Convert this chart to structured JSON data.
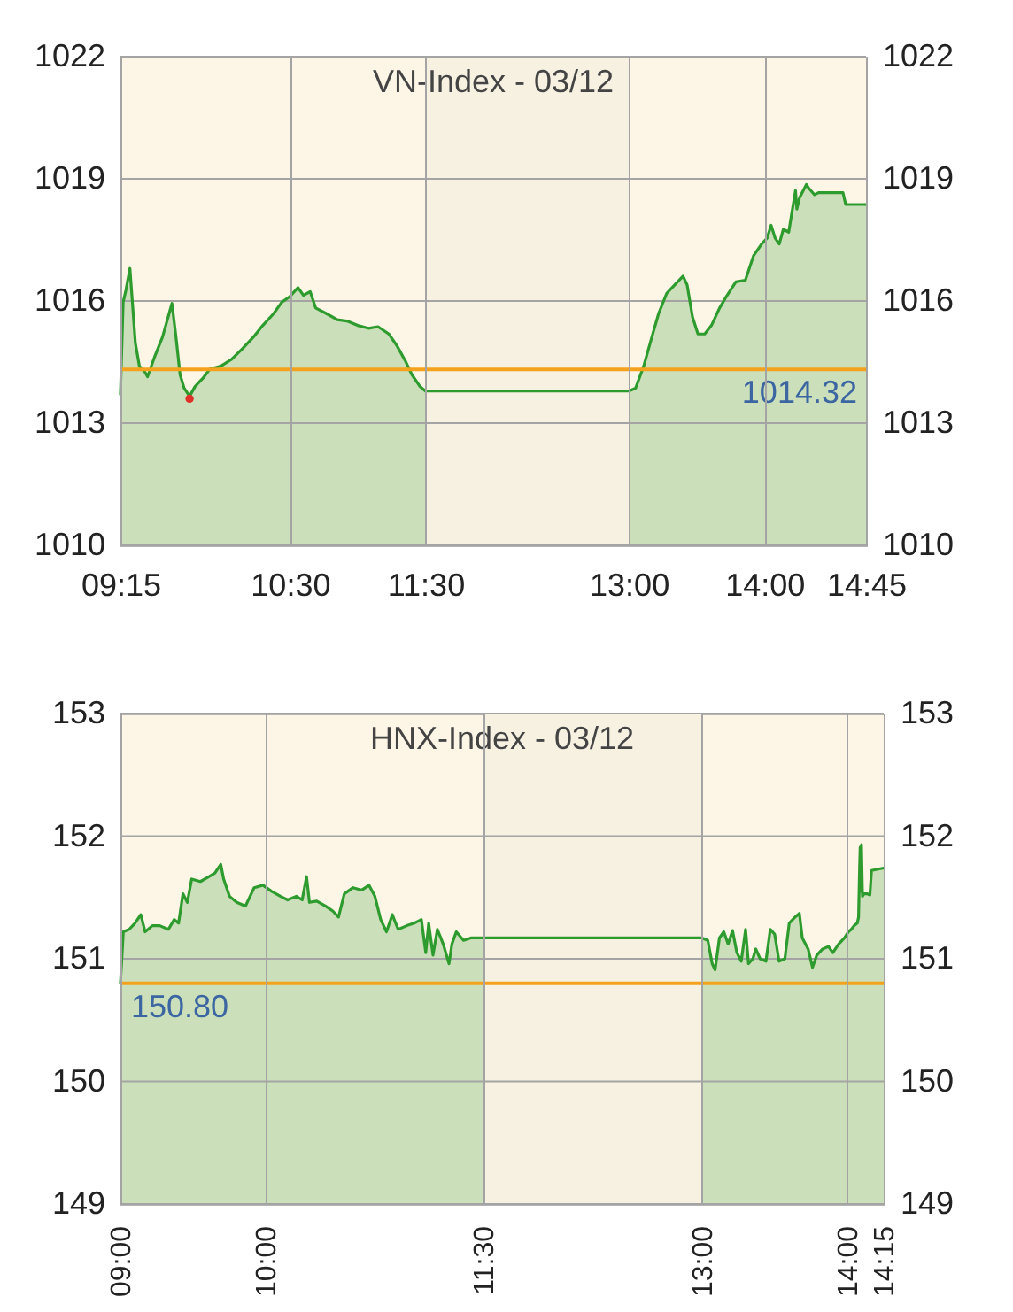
{
  "chart_data": [
    {
      "type": "area",
      "title": "VN-Index - 03/12",
      "x": [
        9.25,
        9.27,
        9.29,
        9.32,
        9.36,
        9.39,
        9.43,
        9.45,
        9.5,
        9.56,
        9.63,
        9.66,
        9.69,
        9.72,
        9.76,
        9.8,
        9.86,
        9.91,
        9.99,
        10.07,
        10.15,
        10.23,
        10.3,
        10.38,
        10.44,
        10.5,
        10.56,
        10.6,
        10.65,
        10.69,
        10.77,
        10.85,
        10.92,
        11.0,
        11.08,
        11.15,
        11.23,
        11.29,
        11.35,
        11.4,
        11.46,
        11.5,
        13.0,
        13.05,
        13.11,
        13.17,
        13.22,
        13.28,
        13.34,
        13.4,
        13.43,
        13.47,
        13.51,
        13.56,
        13.61,
        13.67,
        13.72,
        13.79,
        13.86,
        13.92,
        13.98,
        14.02,
        14.05,
        14.08,
        14.11,
        14.14,
        14.18,
        14.2,
        14.23,
        14.24,
        14.26,
        14.31,
        14.33,
        14.37,
        14.4,
        14.58,
        14.6,
        14.75
      ],
      "series": [
        {
          "color": "#2e9b2e",
          "values": [
            1013.71,
            1015.97,
            1016.26,
            1016.8,
            1014.97,
            1014.4,
            1014.26,
            1014.14,
            1014.61,
            1015.11,
            1015.94,
            1015.11,
            1014.19,
            1013.86,
            1013.66,
            1013.9,
            1014.11,
            1014.33,
            1014.4,
            1014.57,
            1014.83,
            1015.11,
            1015.4,
            1015.69,
            1015.97,
            1016.11,
            1016.33,
            1016.14,
            1016.23,
            1015.83,
            1015.69,
            1015.54,
            1015.51,
            1015.4,
            1015.33,
            1015.37,
            1015.19,
            1014.9,
            1014.54,
            1014.19,
            1013.9,
            1013.79,
            1013.79,
            1013.86,
            1014.4,
            1015.11,
            1015.69,
            1016.19,
            1016.4,
            1016.61,
            1016.4,
            1015.61,
            1015.19,
            1015.19,
            1015.4,
            1015.83,
            1016.11,
            1016.47,
            1016.51,
            1017.11,
            1017.4,
            1017.54,
            1017.86,
            1017.54,
            1017.4,
            1017.76,
            1017.69,
            1018.11,
            1018.71,
            1018.26,
            1018.54,
            1018.86,
            1018.76,
            1018.61,
            1018.66,
            1018.66,
            1018.37,
            1018.37
          ]
        },
        {
          "type": "scatter",
          "color": "#e0302a",
          "marker": "circle",
          "x": [
            9.76
          ],
          "values": [
            1013.6
          ]
        }
      ],
      "xlim": [
        9.25,
        14.75
      ],
      "xticks": [
        {
          "value": 9.25,
          "label": "09:15"
        },
        {
          "value": 10.5,
          "label": "10:30"
        },
        {
          "value": 11.5,
          "label": "11:30"
        },
        {
          "value": 13,
          "label": "13:00"
        },
        {
          "value": 14,
          "label": "14:00"
        },
        {
          "value": 14.75,
          "label": "14:45"
        }
      ],
      "ylim": [
        1010,
        1022
      ],
      "yticks": [
        1010,
        1013,
        1016,
        1019,
        1022
      ],
      "y2lim": [
        1010,
        1022
      ],
      "y2ticks": [
        1010,
        1013,
        1016,
        1019,
        1022
      ],
      "bands": [
        {
          "axis": "x",
          "from": 11.5,
          "to": 13,
          "color": "#f7f1e2"
        }
      ],
      "ref_lines": [
        {
          "axis": "y",
          "value": 1014.32,
          "label": "1014.32",
          "color": "#f4a21e"
        }
      ],
      "grid": true
    },
    {
      "type": "area",
      "title": "HNX-Index - 03/12",
      "x": [
        9.0,
        9.02,
        9.06,
        9.1,
        9.14,
        9.17,
        9.22,
        9.27,
        9.33,
        9.37,
        9.4,
        9.43,
        9.46,
        9.49,
        9.55,
        9.61,
        9.65,
        9.69,
        9.71,
        9.75,
        9.8,
        9.86,
        9.92,
        9.98,
        10.04,
        10.1,
        10.15,
        10.21,
        10.25,
        10.28,
        10.3,
        10.35,
        10.41,
        10.46,
        10.5,
        10.54,
        10.6,
        10.66,
        10.71,
        10.75,
        10.79,
        10.83,
        10.87,
        10.91,
        10.97,
        11.02,
        11.07,
        11.1,
        11.12,
        11.15,
        11.18,
        11.22,
        11.26,
        11.28,
        11.31,
        11.36,
        11.41,
        11.5,
        13.0,
        13.04,
        13.07,
        13.09,
        13.12,
        13.15,
        13.18,
        13.21,
        13.24,
        13.27,
        13.3,
        13.32,
        13.35,
        13.37,
        13.4,
        13.44,
        13.47,
        13.5,
        13.53,
        13.57,
        13.6,
        13.64,
        13.67,
        13.69,
        13.73,
        13.76,
        13.79,
        13.83,
        13.87,
        13.9,
        13.94,
        13.98,
        14.007,
        14.027,
        14.047,
        14.068,
        14.077,
        14.084,
        14.088,
        14.093,
        14.097,
        14.104,
        14.115,
        14.135,
        14.155,
        14.166,
        14.25
      ],
      "series": [
        {
          "color": "#2e9b2e",
          "values": [
            150.8,
            151.22,
            151.24,
            151.29,
            151.36,
            151.22,
            151.27,
            151.27,
            151.24,
            151.32,
            151.29,
            151.53,
            151.46,
            151.65,
            151.63,
            151.67,
            151.7,
            151.77,
            151.65,
            151.51,
            151.46,
            151.43,
            151.58,
            151.6,
            151.55,
            151.51,
            151.48,
            151.51,
            151.48,
            151.67,
            151.46,
            151.47,
            151.43,
            151.39,
            151.34,
            151.53,
            151.58,
            151.56,
            151.6,
            151.51,
            151.32,
            151.22,
            151.36,
            151.24,
            151.27,
            151.29,
            151.32,
            151.05,
            151.29,
            151.03,
            151.24,
            151.12,
            150.96,
            151.12,
            151.22,
            151.15,
            151.17,
            151.17,
            151.17,
            151.15,
            150.96,
            150.91,
            151.17,
            151.22,
            151.12,
            151.23,
            151.05,
            150.98,
            151.24,
            150.96,
            151.0,
            151.08,
            151.0,
            150.98,
            151.24,
            151.2,
            150.98,
            151.0,
            151.29,
            151.34,
            151.37,
            151.17,
            151.08,
            150.93,
            151.03,
            151.08,
            151.1,
            151.05,
            151.12,
            151.17,
            151.22,
            151.24,
            151.27,
            151.29,
            151.34,
            151.74,
            151.91,
            151.55,
            151.93,
            151.51,
            151.53,
            151.53,
            151.52,
            151.72,
            151.74
          ]
        }
      ],
      "xlim": [
        9.0,
        14.25
      ],
      "xticks": [
        {
          "value": 9.0,
          "label": "09:00"
        },
        {
          "value": 10,
          "label": "10:00"
        },
        {
          "value": 11.5,
          "label": "11:30"
        },
        {
          "value": 13,
          "label": "13:00"
        },
        {
          "value": 14,
          "label": "14:00"
        },
        {
          "value": 14.25,
          "label": "14:15"
        }
      ],
      "ylim": [
        149,
        153
      ],
      "yticks": [
        149,
        150,
        151,
        152,
        153
      ],
      "y2lim": [
        149,
        153
      ],
      "y2ticks": [
        149,
        150,
        151,
        152,
        153
      ],
      "bands": [
        {
          "axis": "x",
          "from": 11.5,
          "to": 13,
          "color": "#f7f1e2"
        }
      ],
      "ref_lines": [
        {
          "axis": "y",
          "value": 150.8,
          "label": "150.80",
          "color": "#f4a21e"
        }
      ],
      "grid": true
    }
  ]
}
